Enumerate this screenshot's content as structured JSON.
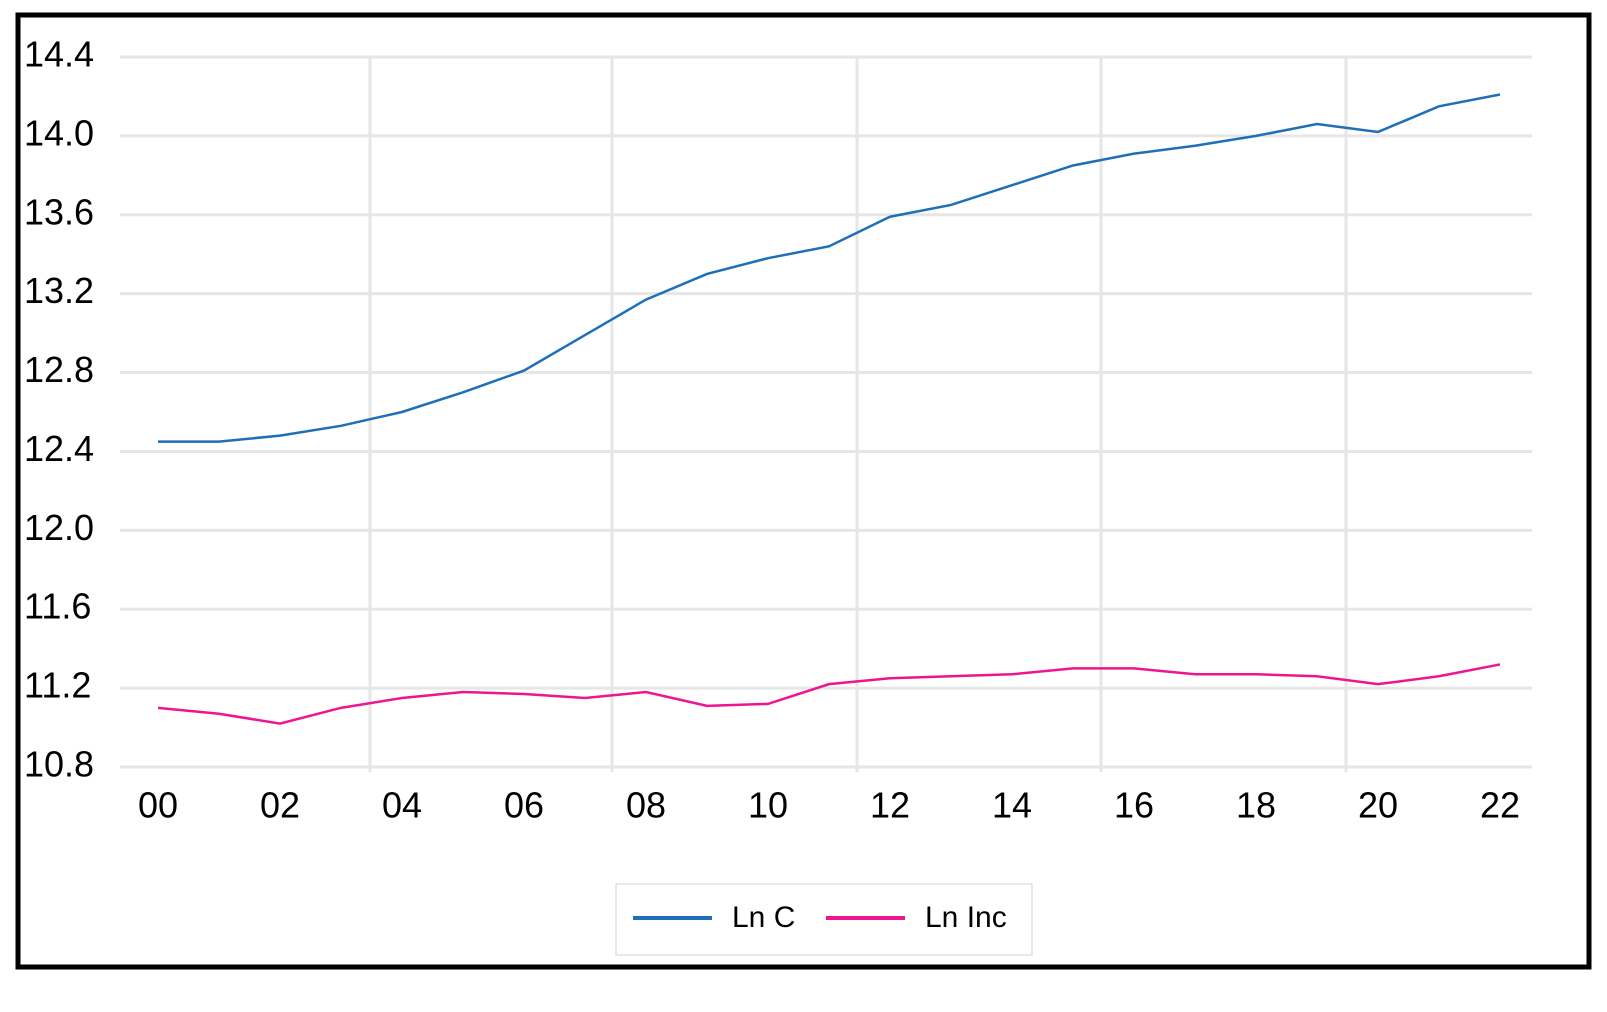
{
  "chart_data": {
    "type": "line",
    "categories": [
      "00",
      null,
      "02",
      null,
      "04",
      null,
      "06",
      null,
      "08",
      null,
      "10",
      null,
      "12",
      null,
      "14",
      null,
      "16",
      null,
      "18",
      null,
      "20",
      null,
      "22"
    ],
    "series": [
      {
        "name": "Ln C",
        "color": "#1f6fb8",
        "values": [
          12.45,
          12.45,
          12.48,
          12.53,
          12.6,
          12.7,
          12.81,
          12.99,
          13.17,
          13.3,
          13.38,
          13.44,
          13.59,
          13.65,
          13.75,
          13.85,
          13.91,
          13.95,
          14.0,
          14.06,
          14.02,
          14.15,
          14.21
        ]
      },
      {
        "name": "Ln Inc",
        "color": "#ee1590",
        "values": [
          11.1,
          11.07,
          11.02,
          11.1,
          11.15,
          11.18,
          11.17,
          11.15,
          11.18,
          11.11,
          11.12,
          11.22,
          11.25,
          11.26,
          11.27,
          11.3,
          11.3,
          11.27,
          11.27,
          11.26,
          11.22,
          11.26,
          11.32
        ]
      }
    ],
    "ylim": [
      10.8,
      14.4
    ],
    "yticks": [
      10.8,
      11.2,
      11.6,
      {
        "value": 12,
        "label": "12.0"
      },
      12.4,
      12.8,
      13.2,
      13.6,
      {
        "value": 14,
        "label": "14.0"
      },
      14.4
    ],
    "grid": true
  }
}
